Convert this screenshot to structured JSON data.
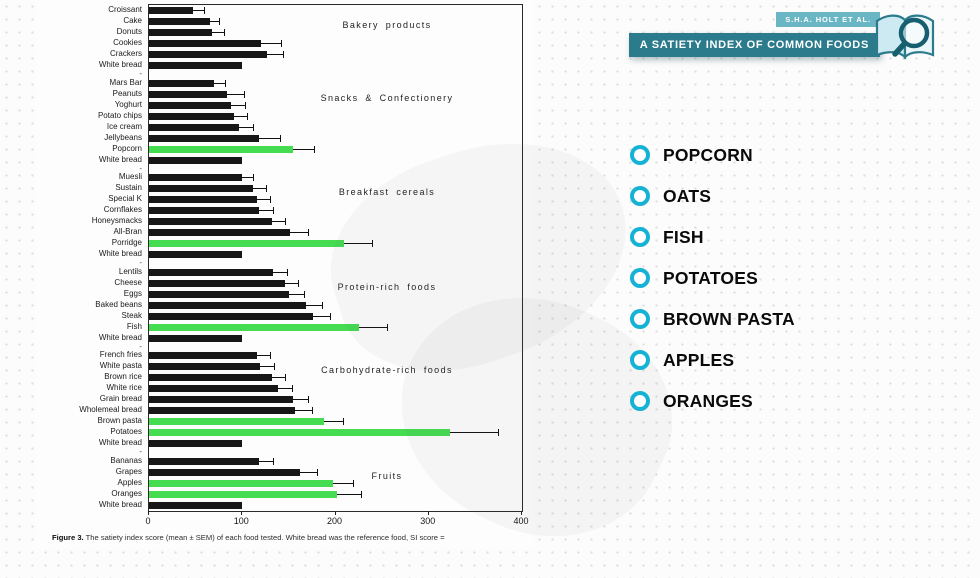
{
  "header": {
    "author_badge": "S.H.A. HOLT ET AL.",
    "title_badge": "A SATIETY INDEX OF COMMON FOODS",
    "book_icon": "open-book-with-magnifier-icon"
  },
  "highlight_list": {
    "bullet_color": "#15b2d6",
    "items": [
      {
        "label": "POPCORN"
      },
      {
        "label": "OATS"
      },
      {
        "label": "FISH"
      },
      {
        "label": "POTATOES"
      },
      {
        "label": "BROWN PASTA"
      },
      {
        "label": "APPLES"
      },
      {
        "label": "ORANGES"
      }
    ]
  },
  "colors": {
    "highlight_green": "#45dc52",
    "bar_black": "#171717",
    "teal_dark": "#2b7b8c",
    "teal_light": "#6ab6c5"
  },
  "chart_data": {
    "type": "bar",
    "orientation": "horizontal",
    "xlim": [
      0,
      400
    ],
    "xlabel_ticks": [
      0,
      100,
      200,
      300,
      400
    ],
    "grid": false,
    "caption_prefix": "Figure 3.",
    "caption_text": " The satiety index score (mean ± SEM) of each food tested. White bread was the reference food, SI score =",
    "groups": [
      {
        "title": "Bakery products",
        "bars": [
          {
            "label": "Croissant",
            "value": 47,
            "sem": 12,
            "highlight": false
          },
          {
            "label": "Cake",
            "value": 65,
            "sem": 10,
            "highlight": false
          },
          {
            "label": "Donuts",
            "value": 68,
            "sem": 12,
            "highlight": false
          },
          {
            "label": "Cookies",
            "value": 120,
            "sem": 22,
            "highlight": false
          },
          {
            "label": "Crackers",
            "value": 127,
            "sem": 17,
            "highlight": false
          },
          {
            "label": "White bread",
            "value": 100,
            "sem": 0,
            "highlight": false
          }
        ]
      },
      {
        "title": "Snacks & Confectionery",
        "bars": [
          {
            "label": "Mars Bar",
            "value": 70,
            "sem": 12,
            "highlight": false
          },
          {
            "label": "Peanuts",
            "value": 84,
            "sem": 18,
            "highlight": false
          },
          {
            "label": "Yoghurt",
            "value": 88,
            "sem": 15,
            "highlight": false
          },
          {
            "label": "Potato chips",
            "value": 91,
            "sem": 14,
            "highlight": false
          },
          {
            "label": "Ice cream",
            "value": 96,
            "sem": 15,
            "highlight": false
          },
          {
            "label": "Jellybeans",
            "value": 118,
            "sem": 22,
            "highlight": false
          },
          {
            "label": "Popcorn",
            "value": 154,
            "sem": 23,
            "highlight": true
          },
          {
            "label": "White bread",
            "value": 100,
            "sem": 0,
            "highlight": false
          }
        ]
      },
      {
        "title": "Breakfast cereals",
        "bars": [
          {
            "label": "Muesli",
            "value": 100,
            "sem": 12,
            "highlight": false
          },
          {
            "label": "Sustain",
            "value": 112,
            "sem": 13,
            "highlight": false
          },
          {
            "label": "Special K",
            "value": 116,
            "sem": 14,
            "highlight": false
          },
          {
            "label": "Cornflakes",
            "value": 118,
            "sem": 15,
            "highlight": false
          },
          {
            "label": "Honeysmacks",
            "value": 132,
            "sem": 14,
            "highlight": false
          },
          {
            "label": "All-Bran",
            "value": 151,
            "sem": 19,
            "highlight": false
          },
          {
            "label": "Porridge",
            "value": 209,
            "sem": 30,
            "highlight": true
          },
          {
            "label": "White bread",
            "value": 100,
            "sem": 0,
            "highlight": false
          }
        ]
      },
      {
        "title": "Protein-rich foods",
        "bars": [
          {
            "label": "Lentils",
            "value": 133,
            "sem": 15,
            "highlight": false
          },
          {
            "label": "Cheese",
            "value": 146,
            "sem": 14,
            "highlight": false
          },
          {
            "label": "Eggs",
            "value": 150,
            "sem": 16,
            "highlight": false
          },
          {
            "label": "Baked beans",
            "value": 168,
            "sem": 17,
            "highlight": false
          },
          {
            "label": "Steak",
            "value": 176,
            "sem": 18,
            "highlight": false
          },
          {
            "label": "Fish",
            "value": 225,
            "sem": 30,
            "highlight": true
          },
          {
            "label": "White bread",
            "value": 100,
            "sem": 0,
            "highlight": false
          }
        ]
      },
      {
        "title": "Carbohydrate-rich foods",
        "bars": [
          {
            "label": "French fries",
            "value": 116,
            "sem": 14,
            "highlight": false
          },
          {
            "label": "White pasta",
            "value": 119,
            "sem": 15,
            "highlight": false
          },
          {
            "label": "Brown rice",
            "value": 132,
            "sem": 14,
            "highlight": false
          },
          {
            "label": "White rice",
            "value": 138,
            "sem": 15,
            "highlight": false
          },
          {
            "label": "Grain bread",
            "value": 154,
            "sem": 17,
            "highlight": false
          },
          {
            "label": "Wholemeal bread",
            "value": 157,
            "sem": 18,
            "highlight": false
          },
          {
            "label": "Brown pasta",
            "value": 188,
            "sem": 20,
            "highlight": true
          },
          {
            "label": "Potatoes",
            "value": 323,
            "sem": 51,
            "highlight": true
          },
          {
            "label": "White bread",
            "value": 100,
            "sem": 0,
            "highlight": false
          }
        ]
      },
      {
        "title": "Fruits",
        "bars": [
          {
            "label": "Bananas",
            "value": 118,
            "sem": 15,
            "highlight": false
          },
          {
            "label": "Grapes",
            "value": 162,
            "sem": 18,
            "highlight": false
          },
          {
            "label": "Apples",
            "value": 197,
            "sem": 22,
            "highlight": true
          },
          {
            "label": "Oranges",
            "value": 202,
            "sem": 25,
            "highlight": true
          },
          {
            "label": "White bread",
            "value": 100,
            "sem": 0,
            "highlight": false
          }
        ]
      }
    ]
  }
}
